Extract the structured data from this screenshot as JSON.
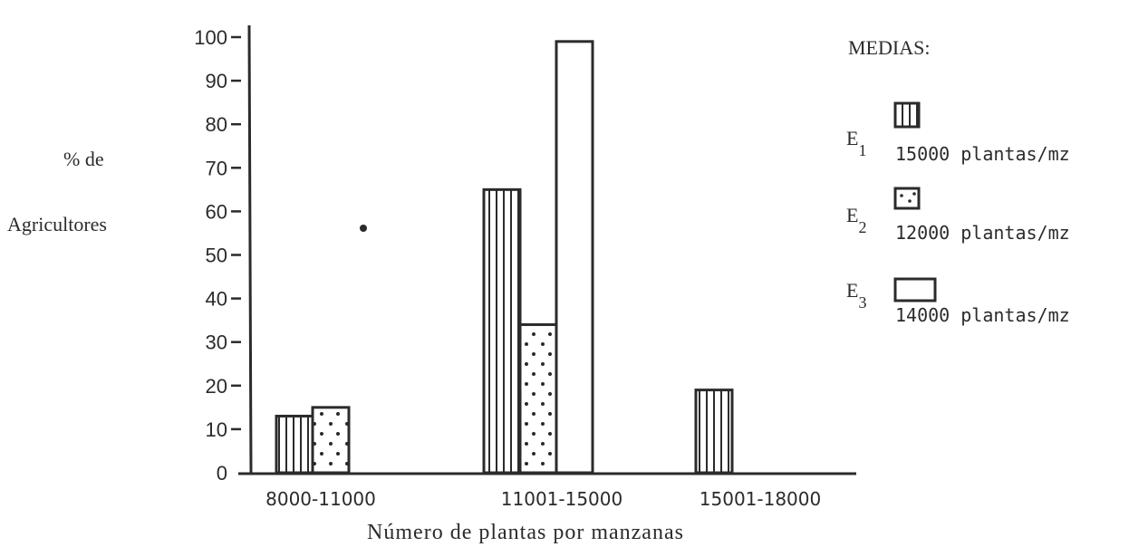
{
  "chart_data": {
    "type": "bar",
    "title": "",
    "xlabel": "Número de plantas por manzanas",
    "ylabel_lines": [
      "% de",
      "Agricultores"
    ],
    "ylim": [
      0,
      100
    ],
    "yticks": [
      0,
      10,
      20,
      30,
      40,
      50,
      60,
      70,
      80,
      90,
      100
    ],
    "categories": [
      "8000-11000",
      "11001-15000",
      "15001-18000"
    ],
    "series": [
      {
        "name": "E1",
        "pattern": "vertical-lines",
        "values": [
          13,
          65,
          19
        ]
      },
      {
        "name": "E2",
        "pattern": "dots",
        "values": [
          15,
          34,
          null
        ]
      },
      {
        "name": "E3",
        "pattern": "empty",
        "values": [
          null,
          99,
          null
        ]
      }
    ],
    "legend": {
      "title": "MEDIAS:",
      "placement": "right",
      "items": [
        {
          "label": "E",
          "sub": "1",
          "value": "15000 plantas/mz",
          "pattern": "vertical-lines"
        },
        {
          "label": "E",
          "sub": "2",
          "value": "12000 plantas/mz",
          "pattern": "dots"
        },
        {
          "label": "E",
          "sub": "3",
          "value": "14000 plantas/mz",
          "pattern": "empty"
        }
      ]
    },
    "grid": false,
    "ink_color": "#2b2b2b"
  }
}
